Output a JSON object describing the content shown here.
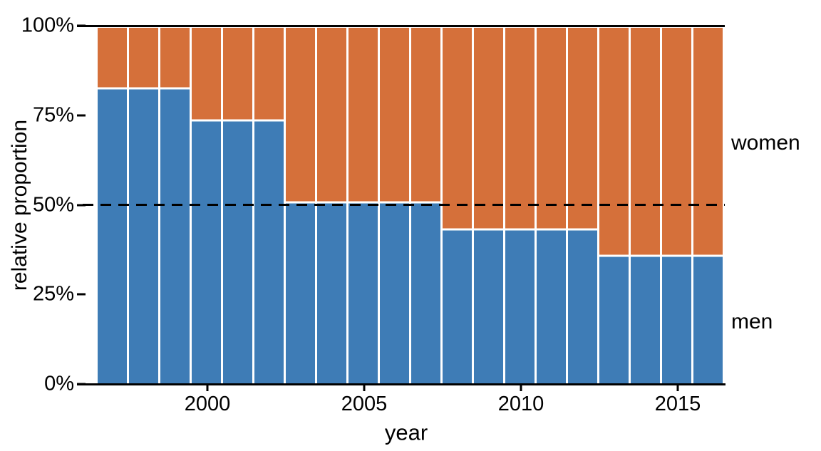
{
  "figure": {
    "background_color": "#ffffff",
    "axis_color": "#000000",
    "text_color": "#000000"
  },
  "chart_data": {
    "type": "bar",
    "subtype": "stacked-normalized",
    "title": "",
    "xlabel": "year",
    "ylabel": "relative proportion",
    "x": [
      1997,
      1998,
      1999,
      2000,
      2001,
      2002,
      2003,
      2004,
      2005,
      2006,
      2007,
      2008,
      2009,
      2010,
      2011,
      2012,
      2013,
      2014,
      2015,
      2016
    ],
    "series": [
      {
        "name": "men",
        "color": "#3E7CB6",
        "values": [
          83,
          83,
          83,
          74,
          74,
          74,
          51,
          51,
          51,
          51,
          51,
          43.5,
          43.5,
          43.5,
          43.5,
          43.5,
          36,
          36,
          36,
          36
        ]
      },
      {
        "name": "women",
        "color": "#D5703A",
        "values": [
          17,
          17,
          17,
          26,
          26,
          26,
          49,
          49,
          49,
          49,
          49,
          56.5,
          56.5,
          56.5,
          56.5,
          56.5,
          64,
          64,
          64,
          64
        ]
      }
    ],
    "ylim": [
      0,
      100
    ],
    "y_ticks": [
      {
        "value": 100,
        "label": "100%"
      },
      {
        "value": 75,
        "label": "75%"
      },
      {
        "value": 50,
        "label": "50%"
      },
      {
        "value": 25,
        "label": "25%"
      },
      {
        "value": 0,
        "label": "0%"
      }
    ],
    "x_ticks": [
      {
        "value": 2000,
        "label": "2000"
      },
      {
        "value": 2005,
        "label": "2005"
      },
      {
        "value": 2010,
        "label": "2010"
      },
      {
        "value": 2015,
        "label": "2015"
      }
    ],
    "reference_line": {
      "value": 50,
      "style": "dashed",
      "color": "#000000"
    },
    "grid": false,
    "legend_position": "direct-labels-right"
  }
}
